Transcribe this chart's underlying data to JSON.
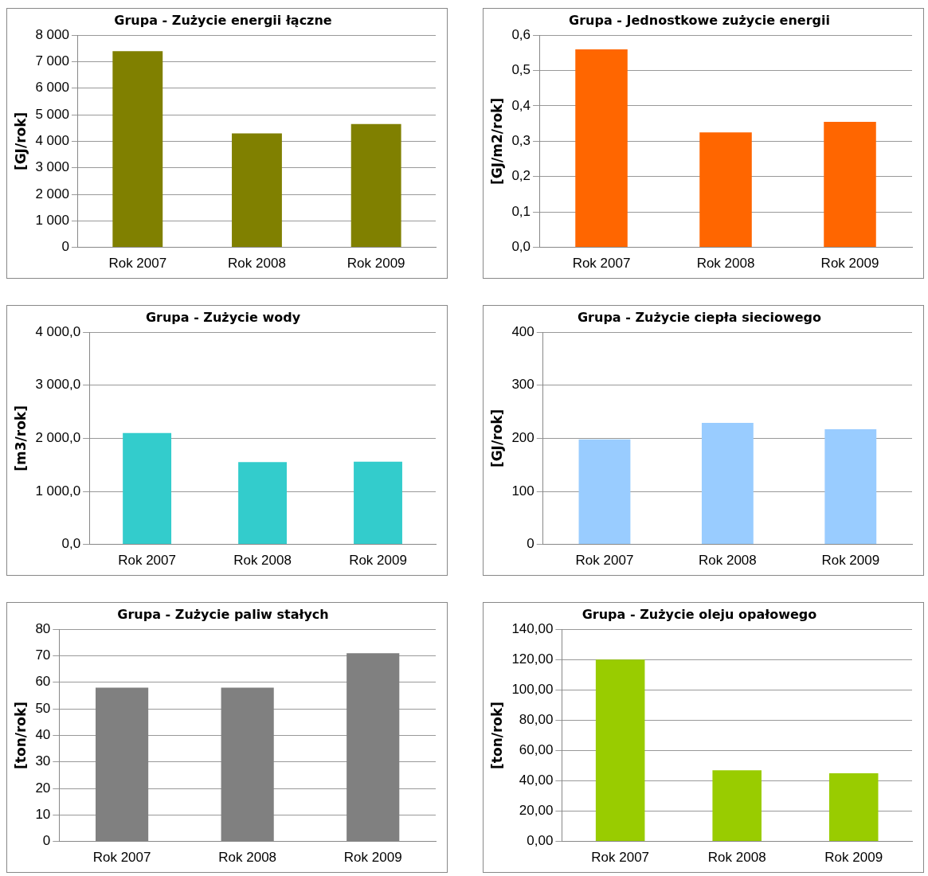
{
  "chart_data": [
    {
      "type": "bar",
      "title": "Grupa - Zużycie energii łączne",
      "ylabel": "[GJ/rok]",
      "categories": [
        "Rok 2007",
        "Rok 2008",
        "Rok 2009"
      ],
      "values": [
        7400,
        4300,
        4650
      ],
      "color": "#808000",
      "ylim": [
        0,
        8000
      ],
      "yticks": [
        0,
        {
          "value": 1000,
          "label": "1 000"
        },
        {
          "value": 2000,
          "label": "2 000"
        },
        {
          "value": 3000,
          "label": "3 000"
        },
        {
          "value": 4000,
          "label": "4 000"
        },
        {
          "value": 5000,
          "label": "5 000"
        },
        {
          "value": 6000,
          "label": "6 000"
        },
        {
          "value": 7000,
          "label": "7 000"
        },
        {
          "value": 8000,
          "label": "8 000"
        }
      ],
      "grid": "y",
      "legend": false
    },
    {
      "type": "bar",
      "title": "Grupa - Jednostkowe zużycie energii",
      "ylabel": "[GJ/m2/rok]",
      "categories": [
        "Rok 2007",
        "Rok 2008",
        "Rok 2009"
      ],
      "values": [
        0.56,
        0.325,
        0.355
      ],
      "color": "#ff6600",
      "ylim": [
        0,
        0.6
      ],
      "yticks": [
        {
          "value": 0,
          "label": "0,0"
        },
        {
          "value": 0.1,
          "label": "0,1"
        },
        {
          "value": 0.2,
          "label": "0,2"
        },
        {
          "value": 0.3,
          "label": "0,3"
        },
        {
          "value": 0.4,
          "label": "0,4"
        },
        {
          "value": 0.5,
          "label": "0,5"
        },
        {
          "value": 0.6,
          "label": "0,6"
        }
      ],
      "grid": "y",
      "legend": false
    },
    {
      "type": "bar",
      "title": "Grupa - Zużycie wody",
      "ylabel": "[m3/rok]",
      "categories": [
        "Rok 2007",
        "Rok 2008",
        "Rok 2009"
      ],
      "values": [
        2100,
        1550,
        1560
      ],
      "color": "#33cccc",
      "ylim": [
        0,
        4000
      ],
      "yticks": [
        {
          "value": 0,
          "label": "0,0"
        },
        {
          "value": 1000,
          "label": "1 000,0"
        },
        {
          "value": 2000,
          "label": "2 000,0"
        },
        {
          "value": 3000,
          "label": "3 000,0"
        },
        {
          "value": 4000,
          "label": "4 000,0"
        }
      ],
      "grid": "y",
      "legend": false
    },
    {
      "type": "bar",
      "title": "Grupa - Zużycie ciepła sieciowego",
      "ylabel": "[GJ/rok]",
      "categories": [
        "Rok 2007",
        "Rok 2008",
        "Rok 2009"
      ],
      "values": [
        198,
        229,
        217
      ],
      "color": "#99ccff",
      "ylim": [
        0,
        400
      ],
      "yticks": [
        0,
        100,
        200,
        300,
        400
      ],
      "grid": "y",
      "legend": false
    },
    {
      "type": "bar",
      "title": "Grupa - Zużycie paliw stałych",
      "ylabel": "[ton/rok]",
      "categories": [
        "Rok 2007",
        "Rok 2008",
        "Rok 2009"
      ],
      "values": [
        58,
        58,
        71
      ],
      "color": "#808080",
      "ylim": [
        0,
        80
      ],
      "yticks": [
        0,
        10,
        20,
        30,
        40,
        50,
        60,
        70,
        80
      ],
      "grid": "y",
      "legend": false
    },
    {
      "type": "bar",
      "title": "Grupa - Zużycie oleju opałowego",
      "ylabel": "[ton/rok]",
      "categories": [
        "Rok 2007",
        "Rok 2008",
        "Rok 2009"
      ],
      "values": [
        120,
        47,
        45
      ],
      "color": "#99cc00",
      "ylim": [
        0,
        140
      ],
      "yticks": [
        {
          "value": 0,
          "label": "0,00"
        },
        {
          "value": 20,
          "label": "20,00"
        },
        {
          "value": 40,
          "label": "40,00"
        },
        {
          "value": 60,
          "label": "60,00"
        },
        {
          "value": 80,
          "label": "80,00"
        },
        {
          "value": 100,
          "label": "100,00"
        },
        {
          "value": 120,
          "label": "120,00"
        },
        {
          "value": 140,
          "label": "140,00"
        }
      ],
      "grid": "y",
      "legend": false
    }
  ]
}
